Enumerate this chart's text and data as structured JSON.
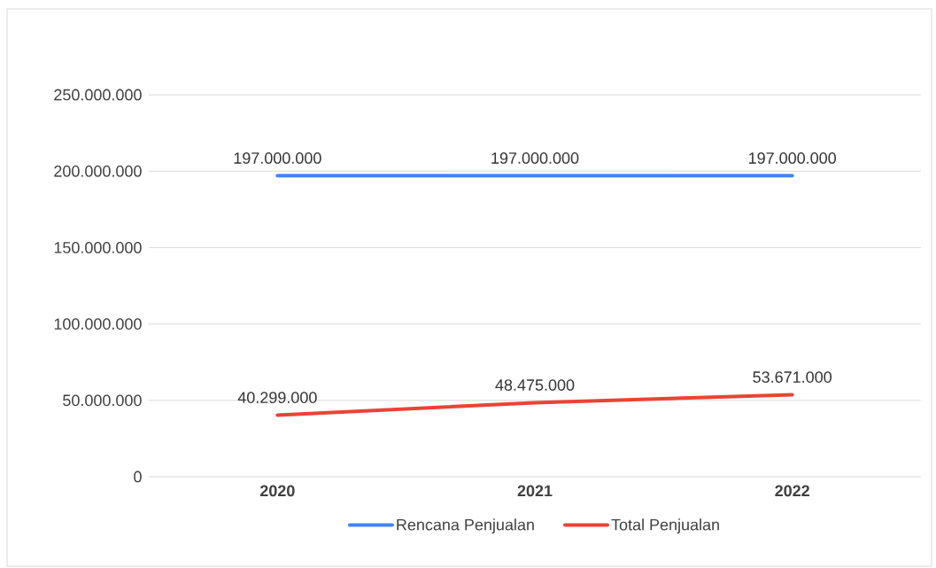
{
  "chart_data": {
    "type": "line",
    "categories": [
      "2020",
      "2021",
      "2022"
    ],
    "series": [
      {
        "name": "Rencana Penjualan",
        "color": "#4285f4",
        "values": [
          197000000,
          197000000,
          197000000
        ],
        "value_labels": [
          "197.000.000",
          "197.000.000",
          "197.000.000"
        ]
      },
      {
        "name": "Total Penjualan",
        "color": "#ea4335",
        "values": [
          40299000,
          48475000,
          53671000
        ],
        "value_labels": [
          "40.299.000",
          "48.475.000",
          "53.671.000"
        ]
      }
    ],
    "ylim": [
      0,
      250000000
    ],
    "yticks": [
      {
        "value": 0,
        "label": "0"
      },
      {
        "value": 50000000,
        "label": "50.000.000"
      },
      {
        "value": 100000000,
        "label": "100.000.000"
      },
      {
        "value": 150000000,
        "label": "150.000.000"
      },
      {
        "value": 200000000,
        "label": "200.000.000"
      },
      {
        "value": 250000000,
        "label": "250.000.000"
      }
    ],
    "grid": "y",
    "legend": "bottom"
  }
}
